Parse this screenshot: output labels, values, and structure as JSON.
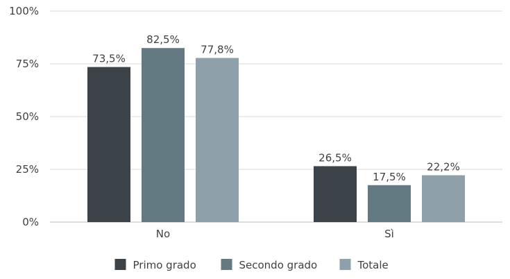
{
  "chart_data": {
    "type": "bar",
    "categories": [
      "No",
      "Sì"
    ],
    "series": [
      {
        "name": "Primo grado",
        "values": [
          73.5,
          26.5
        ],
        "labels": [
          "73,5%",
          "26,5%"
        ],
        "color": "#3b4248"
      },
      {
        "name": "Secondo grado",
        "values": [
          82.5,
          17.5
        ],
        "labels": [
          "82,5%",
          "17,5%"
        ],
        "color": "#647a82"
      },
      {
        "name": "Totale",
        "values": [
          77.8,
          22.2
        ],
        "labels": [
          "77,8%",
          "22,2%"
        ],
        "color": "#8ea1aa"
      }
    ],
    "yticks": [
      {
        "value": 0,
        "label": "0%"
      },
      {
        "value": 25,
        "label": "25%"
      },
      {
        "value": 50,
        "label": "50%"
      },
      {
        "value": 75,
        "label": "75%"
      },
      {
        "value": 100,
        "label": "100%"
      }
    ],
    "ylim": [
      0,
      100
    ],
    "grid": true,
    "legend": "bottom",
    "title": "",
    "xlabel": "",
    "ylabel": ""
  }
}
